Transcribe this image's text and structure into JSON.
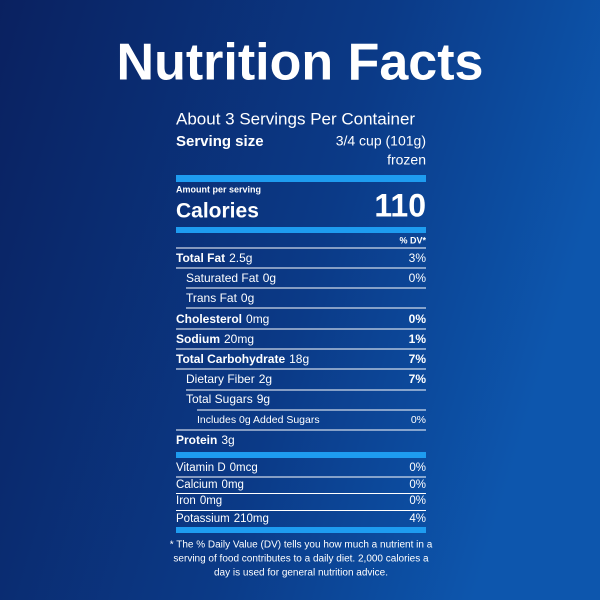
{
  "title": "Nutrition Facts",
  "servings": "About 3 Servings Per Container",
  "serving_size": {
    "label": "Serving size",
    "amount": "3/4 cup (101g)",
    "note": "frozen"
  },
  "amount_per_serving": "Amount per serving",
  "calories": {
    "label": "Calories",
    "value": 110
  },
  "dv_header": "% DV*",
  "nutrients": [
    {
      "name": "Total Fat",
      "amount": "2.5g",
      "dv": "3%"
    },
    {
      "name": "Saturated Fat",
      "amount": "0g",
      "dv": "0%"
    },
    {
      "name": "Trans Fat",
      "amount": "0g"
    },
    {
      "name": "Cholesterol",
      "amount": "0mg",
      "dv": "0%"
    },
    {
      "name": "Sodium",
      "amount": "20mg",
      "dv": "1%"
    },
    {
      "name": "Total Carbohydrate",
      "amount": "18g",
      "dv": "7%"
    },
    {
      "name": "Dietary Fiber",
      "amount": "2g",
      "dv": "7%"
    },
    {
      "name": "Total Sugars",
      "amount": "9g"
    },
    {
      "name": "Includes 0g Added Sugars",
      "dv": "0%"
    },
    {
      "name": "Protein",
      "amount": "3g"
    }
  ],
  "vitamins": [
    {
      "name": "Vitamin D",
      "amount": "0mcg",
      "dv": "0%"
    },
    {
      "name": "Calcium",
      "amount": "0mg",
      "dv": "0%"
    },
    {
      "name": "Iron",
      "amount": "0mg",
      "dv": "0%"
    },
    {
      "name": "Potassium",
      "amount": "210mg",
      "dv": "4%"
    }
  ],
  "footnote": [
    "* The % Daily Value (DV) tells you how much a nutrient in a",
    "serving of food contributes to a daily diet. 2,000 calories a",
    "day is used for general nutrition advice."
  ]
}
